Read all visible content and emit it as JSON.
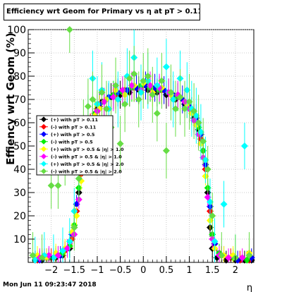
{
  "title": "Efficiency wrt Geom for Primary vs   η at pT > 0.11",
  "footer_date": "Mon Jun 11 09:23:47 2018",
  "chart_data": {
    "type": "scatter",
    "title": "Efficiency wrt Geom for Primary vs   η at pT > 0.11",
    "xlabel": "η",
    "ylabel": "Effiency wrt Geom (%)",
    "xlim": [
      -2.5,
      2.4
    ],
    "ylim": [
      0,
      100
    ],
    "xticks": [
      -2,
      -1.5,
      -1,
      -0.5,
      0,
      0.5,
      1,
      1.5,
      2
    ],
    "xtick_labels": [
      "−2",
      "−1.5",
      "−1",
      "−0.5",
      "0",
      "0.5",
      "1",
      "1.5",
      "2"
    ],
    "yticks": [
      10,
      20,
      30,
      40,
      50,
      60,
      70,
      80,
      90,
      100
    ],
    "legend_position": "left-center",
    "series": [
      {
        "name": "(+) with pT > 0.11",
        "color": "#000000",
        "marker": "diamond",
        "line_color": "#000000",
        "x": [
          -2.35,
          -2.2,
          -2.05,
          -1.9,
          -1.75,
          -1.6,
          -1.5,
          -1.4,
          -1.3,
          -1.2,
          -1.1,
          -1.0,
          -0.9,
          -0.7,
          -0.5,
          -0.3,
          -0.1,
          0.1,
          0.3,
          0.5,
          0.7,
          0.9,
          1.0,
          1.1,
          1.2,
          1.3,
          1.4,
          1.45,
          1.5,
          1.6,
          1.8,
          2.0,
          2.2,
          2.35
        ],
        "y": [
          1,
          1,
          2,
          2,
          3,
          6,
          15,
          30,
          45,
          55,
          62,
          66,
          69,
          71,
          72,
          73,
          74,
          74,
          73,
          72,
          70,
          68,
          66,
          62,
          57,
          48,
          30,
          15,
          6,
          2,
          1,
          1,
          1,
          1
        ]
      },
      {
        "name": "(-) with pT > 0.11",
        "color": "#ff0000",
        "marker": "diamond",
        "line_color": "#ff0000",
        "x": [
          -2.3,
          -2.15,
          -2.0,
          -1.85,
          -1.7,
          -1.55,
          -1.45,
          -1.35,
          -1.25,
          -1.15,
          -1.05,
          -0.95,
          -0.8,
          -0.6,
          -0.4,
          -0.2,
          0.0,
          0.2,
          0.4,
          0.6,
          0.8,
          0.95,
          1.05,
          1.15,
          1.25,
          1.35,
          1.45,
          1.55,
          1.7,
          1.9,
          2.1,
          2.3
        ],
        "y": [
          1,
          2,
          2,
          3,
          5,
          10,
          22,
          38,
          50,
          58,
          64,
          67,
          70,
          72,
          74,
          75,
          76,
          75,
          74,
          73,
          71,
          68,
          65,
          60,
          53,
          40,
          22,
          8,
          3,
          2,
          1,
          1
        ]
      },
      {
        "name": "(+) with pT > 0.5",
        "color": "#0000ff",
        "marker": "diamond",
        "line_color": "#0000ff",
        "x": [
          -2.25,
          -2.1,
          -1.95,
          -1.8,
          -1.65,
          -1.55,
          -1.45,
          -1.35,
          -1.25,
          -1.1,
          -0.95,
          -0.75,
          -0.55,
          -0.35,
          -0.15,
          0.05,
          0.25,
          0.45,
          0.65,
          0.85,
          1.0,
          1.15,
          1.25,
          1.35,
          1.45,
          1.55,
          1.75,
          2.05,
          2.35
        ],
        "y": [
          1,
          2,
          2,
          3,
          6,
          12,
          25,
          40,
          52,
          62,
          68,
          71,
          73,
          74,
          75,
          76,
          75,
          74,
          72,
          70,
          67,
          62,
          55,
          42,
          24,
          8,
          3,
          1,
          2
        ]
      },
      {
        "name": "(-) with pT > 0.5",
        "color": "#00ee00",
        "marker": "diamond",
        "line_color": "#00ee00",
        "x": [
          -2.2,
          -2.05,
          -1.9,
          -1.75,
          -1.6,
          -1.5,
          -1.4,
          -1.3,
          -1.2,
          -1.05,
          -0.85,
          -0.65,
          -0.45,
          -0.25,
          -0.05,
          0.15,
          0.35,
          0.55,
          0.75,
          0.9,
          1.05,
          1.2,
          1.3,
          1.4,
          1.5,
          1.65,
          1.95,
          2.25
        ],
        "y": [
          2,
          2,
          3,
          4,
          7,
          16,
          32,
          46,
          56,
          64,
          69,
          72,
          73,
          75,
          76,
          75,
          74,
          73,
          71,
          69,
          65,
          58,
          48,
          32,
          12,
          4,
          2,
          1
        ]
      },
      {
        "name": "(+) with pT > 0.5 & |η| > 1.0",
        "color": "#ffff00",
        "marker": "diamond",
        "line_color": "#ffff00",
        "x": [
          -2.3,
          -2.1,
          -1.9,
          -1.7,
          -1.55,
          -1.45,
          -1.35,
          -1.25,
          -1.15,
          -1.05,
          -0.95,
          -0.8,
          -0.6,
          -0.4,
          -0.2,
          0.0,
          0.2,
          0.4,
          0.6,
          0.8,
          0.95,
          1.05,
          1.15,
          1.25,
          1.35,
          1.45,
          1.55,
          1.75,
          1.95,
          2.3
        ],
        "y": [
          3,
          2,
          4,
          6,
          13,
          20,
          35,
          48,
          57,
          63,
          66,
          70,
          74,
          72,
          76,
          77,
          73,
          75,
          72,
          71,
          68,
          64,
          59,
          51,
          37,
          18,
          6,
          3,
          3,
          4
        ]
      },
      {
        "name": "(-) with pT > 0.5 & |η| > 1.0",
        "color": "#ff00ff",
        "marker": "diamond",
        "line_color": "#ff00ff",
        "x": [
          -2.25,
          -2.05,
          -1.85,
          -1.65,
          -1.5,
          -1.4,
          -1.3,
          -1.2,
          -1.1,
          -1.0,
          -0.85,
          -0.65,
          -0.45,
          -0.25,
          -0.05,
          0.15,
          0.35,
          0.55,
          0.75,
          0.9,
          1.0,
          1.1,
          1.2,
          1.3,
          1.4,
          1.5,
          1.65,
          1.85,
          2.15
        ],
        "y": [
          2,
          3,
          3,
          6,
          12,
          27,
          43,
          54,
          61,
          65,
          69,
          71,
          74,
          76,
          74,
          76,
          75,
          73,
          72,
          69,
          66,
          61,
          55,
          45,
          28,
          10,
          3,
          2,
          2
        ]
      },
      {
        "name": "(+) with pT > 0.5 & |η| > 2.0",
        "color": "#00ffff",
        "marker": "diamond",
        "line_color": "#00ffff",
        "x": [
          -2.35,
          -2.15,
          -1.95,
          -1.75,
          -1.6,
          -1.5,
          -1.4,
          -1.3,
          -1.2,
          -1.1,
          -1.0,
          -0.9,
          -0.75,
          -0.55,
          -0.35,
          -0.2,
          -0.05,
          0.1,
          0.3,
          0.5,
          0.65,
          0.8,
          0.95,
          1.05,
          1.15,
          1.25,
          1.35,
          1.45,
          1.55,
          1.75,
          2.0,
          2.2
        ],
        "y": [
          1,
          3,
          2,
          5,
          9,
          22,
          36,
          50,
          60,
          79,
          68,
          74,
          66,
          70,
          80,
          88,
          73,
          78,
          76,
          84,
          70,
          79,
          74,
          66,
          63,
          56,
          44,
          26,
          9,
          25,
          2,
          50
        ]
      },
      {
        "name": "(-) with pT > 0.5 & |η| > 2.0",
        "color": "#66dd44",
        "marker": "diamond",
        "line_color": "#66dd44",
        "x": [
          -2.4,
          -2.2,
          -2.0,
          -1.85,
          -1.7,
          -1.6,
          -1.5,
          -1.4,
          -1.3,
          -1.2,
          -1.1,
          -1.0,
          -0.9,
          -0.8,
          -0.7,
          -0.6,
          -0.5,
          -0.4,
          -0.3,
          -0.2,
          -0.1,
          0.0,
          0.1,
          0.2,
          0.3,
          0.4,
          0.5,
          0.6,
          0.7,
          0.8,
          0.9,
          1.0,
          1.1,
          1.2,
          1.3,
          1.4,
          1.5,
          1.7,
          2.0,
          2.3
        ],
        "y": [
          3,
          2,
          33,
          33,
          43,
          100,
          15,
          36,
          60,
          67,
          70,
          62,
          73,
          66,
          58,
          76,
          51,
          68,
          79,
          81,
          70,
          78,
          80,
          72,
          64,
          78,
          48,
          73,
          66,
          71,
          66,
          69,
          65,
          60,
          52,
          40,
          20,
          3,
          2,
          3
        ]
      }
    ]
  }
}
